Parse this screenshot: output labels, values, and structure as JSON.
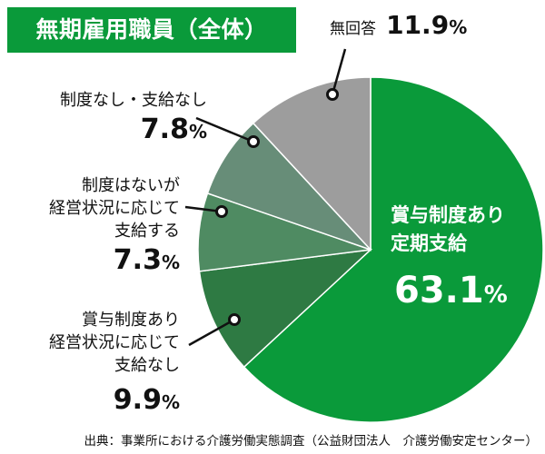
{
  "title": "無期雇用職員（全体）",
  "source": "出典：事業所における介護労働実態調査（公益財団法人　介護労働安定センター）",
  "chart_data": {
    "type": "pie",
    "start_angle_deg": 0,
    "direction": "clockwise",
    "unit": "%",
    "slices": [
      {
        "label_lines": [
          "賞与制度あり",
          "定期支給"
        ],
        "value": 63.1,
        "value_text": "63.1",
        "color": "#0a9a3a"
      },
      {
        "label_lines": [
          "賞与制度あり",
          "経営状況に応じて",
          "支給なし"
        ],
        "value": 9.9,
        "value_text": "9.9",
        "color": "#2e7a43"
      },
      {
        "label_lines": [
          "制度はないが",
          "経営状況に応じて",
          "支給する"
        ],
        "value": 7.3,
        "value_text": "7.3",
        "color": "#4f8b62"
      },
      {
        "label_lines": [
          "制度なし・支給なし"
        ],
        "value": 7.8,
        "value_text": "7.8",
        "color": "#678d78"
      },
      {
        "label_lines": [
          "無回答"
        ],
        "value": 11.9,
        "value_text": "11.9",
        "color": "#9d9d9d"
      }
    ]
  }
}
